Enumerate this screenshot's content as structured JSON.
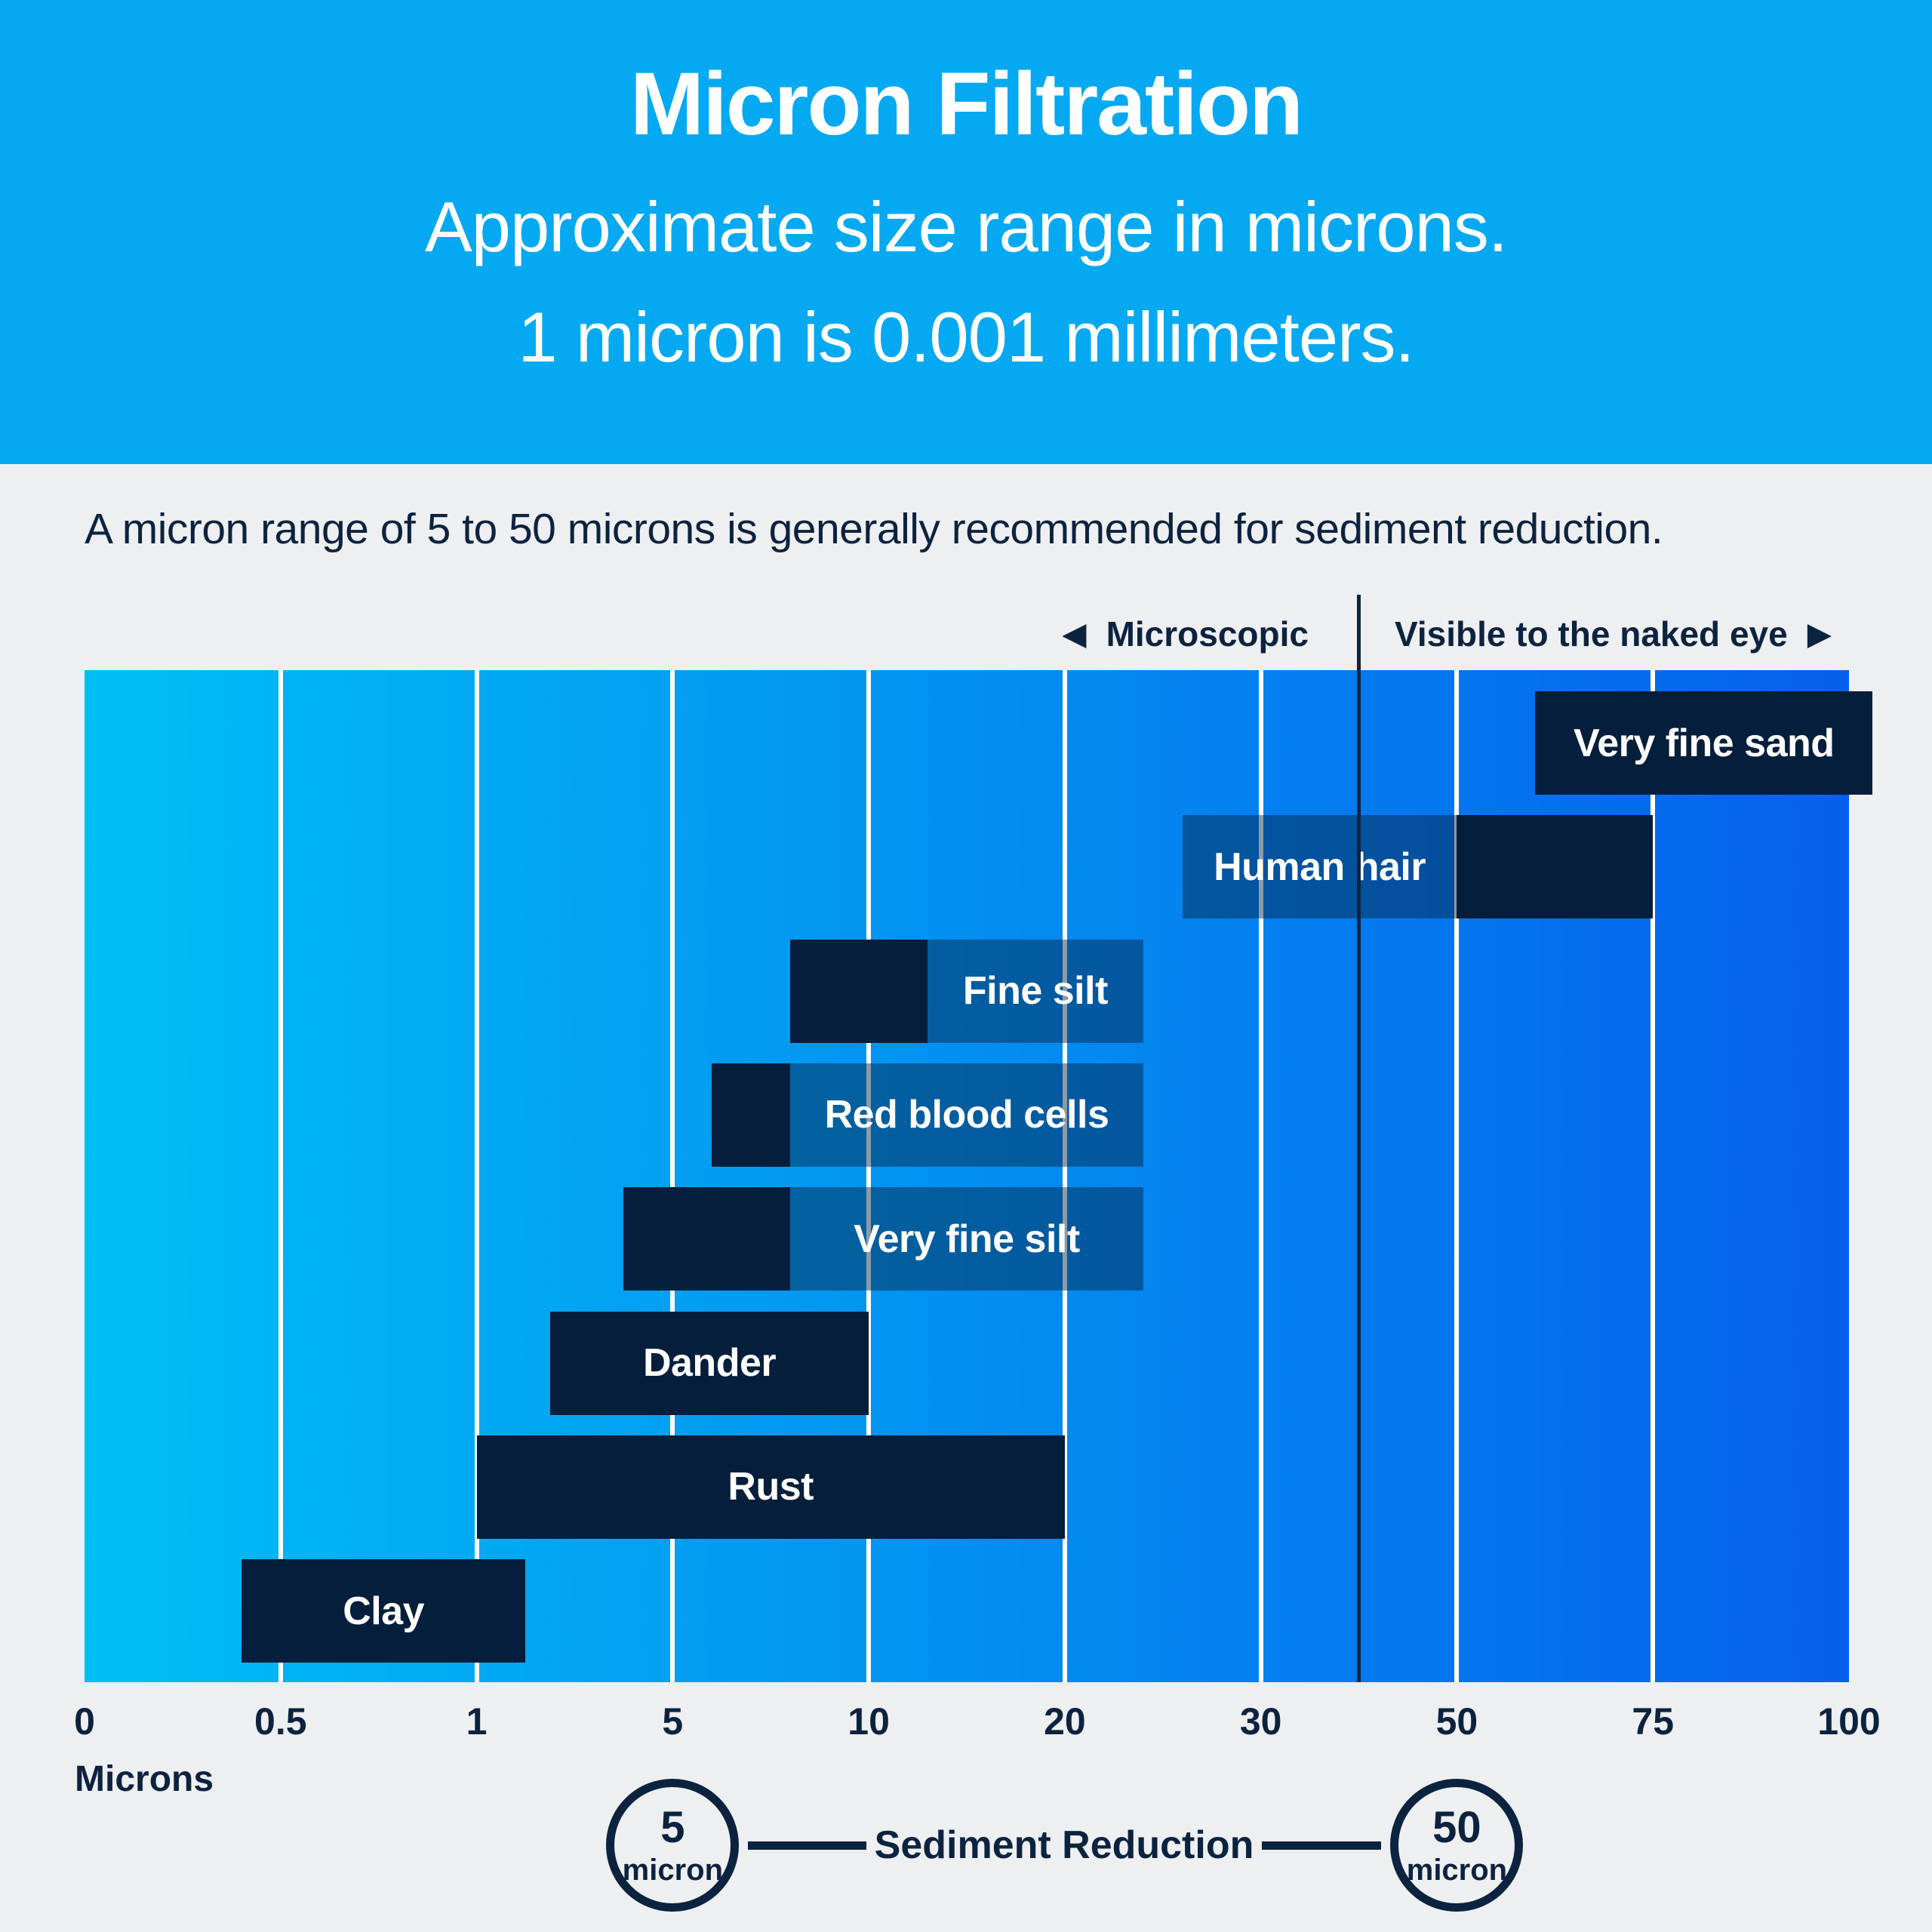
{
  "header": {
    "title": "Micron Filtration",
    "subtitle_line1": "Approximate size range in microns.",
    "subtitle_line2": "1 micron is 0.001 millimeters."
  },
  "intro": {
    "text": "A micron range of 5 to 50 microns is generally recommended for sediment reduction."
  },
  "zones": {
    "left_arrow": "◀",
    "left_label": "Microscopic",
    "right_label": "Visible to the naked eye",
    "right_arrow": "▶"
  },
  "chart_data": {
    "type": "bar",
    "orientation": "horizontal-range",
    "unit": "microns",
    "title": "Micron Filtration",
    "axis_label": "Microns",
    "tick_values": [
      0,
      0.5,
      1,
      5,
      10,
      20,
      30,
      50,
      75,
      100
    ],
    "tick_labels": [
      "0",
      "0.5",
      "1",
      "5",
      "10",
      "20",
      "30",
      "50",
      "75",
      "100"
    ],
    "scale": "piecewise-linear, equal-width segments between ticks",
    "divider_value": 40,
    "grid": true,
    "items": [
      {
        "label": "Very fine sand",
        "range_microns": [
          60,
          103
        ],
        "ext_microns": null,
        "label_placement": "range",
        "note": "extends past right edge of chart"
      },
      {
        "label": "Human hair",
        "range_microns": [
          50,
          75
        ],
        "ext_microns": [
          26,
          50
        ],
        "label_placement": "ext"
      },
      {
        "label": "Fine silt",
        "range_microns": [
          8,
          13
        ],
        "ext_microns": [
          13,
          24
        ],
        "label_placement": "ext"
      },
      {
        "label": "Red blood cells",
        "range_microns": [
          6,
          8
        ],
        "ext_microns": [
          8,
          24
        ],
        "label_placement": "ext"
      },
      {
        "label": "Very fine silt",
        "range_microns": [
          4,
          8
        ],
        "ext_microns": [
          8,
          24
        ],
        "label_placement": "ext"
      },
      {
        "label": "Dander",
        "range_microns": [
          2.5,
          10
        ],
        "ext_microns": null,
        "label_placement": "range"
      },
      {
        "label": "Rust",
        "range_microns": [
          1,
          20
        ],
        "ext_microns": null,
        "label_placement": "range"
      },
      {
        "label": "Clay",
        "range_microns": [
          0.4,
          2
        ],
        "ext_microns": null,
        "label_placement": "range"
      }
    ]
  },
  "footer": {
    "left_circle": {
      "value": "5",
      "unit": "micron",
      "micron_value": 5
    },
    "label": "Sediment Reduction",
    "right_circle": {
      "value": "50",
      "unit": "micron",
      "micron_value": 50
    }
  },
  "colors": {
    "hero_background": "#05A9F1",
    "page_background": "#EEEFF1",
    "navy_text": "#0C2340",
    "bar_dark": "#041E3B",
    "bar_overlay": "rgba(4,30,59,0.45)",
    "gradient_left": "#00BFF5",
    "gradient_right": "#0560EC",
    "gridline": "#FFFFFF",
    "label_text": "#FFFFFF"
  }
}
